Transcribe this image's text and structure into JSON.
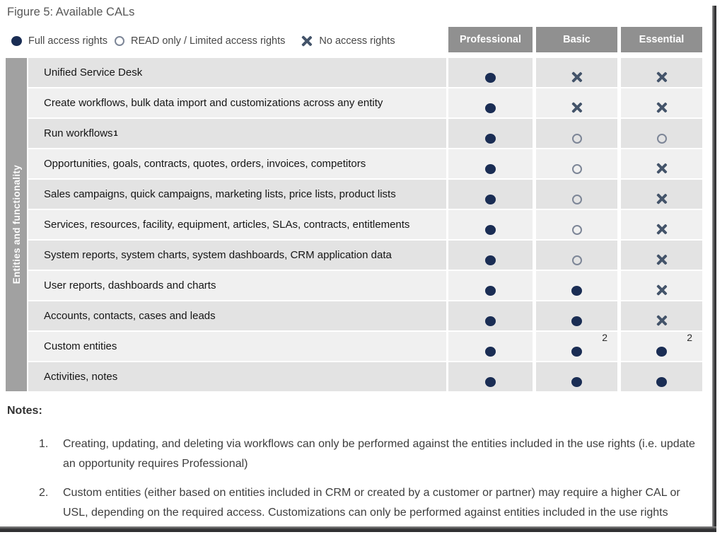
{
  "figure": {
    "title": "Figure 5: Available CALs"
  },
  "legend": [
    {
      "type": "full",
      "icon": "full-access-icon",
      "label": "Full access rights"
    },
    {
      "type": "limited",
      "icon": "limited-access-icon",
      "label": "READ only / Limited access rights"
    },
    {
      "type": "none",
      "icon": "no-access-icon",
      "label": "No access rights"
    }
  ],
  "table": {
    "group_label": "Entities and functionality",
    "columns": [
      "Professional",
      "Basic",
      "Essential"
    ],
    "cell_icons": {
      "full": "full-access-icon",
      "limited": "limited-access-icon",
      "none": "no-access-icon"
    },
    "rows": [
      {
        "label": "Unified Service Desk",
        "cells": [
          "full",
          "none",
          "none"
        ]
      },
      {
        "label": "Create workflows, bulk data import and customizations across any entity",
        "cells": [
          "full",
          "none",
          "none"
        ]
      },
      {
        "label": "Run workflows",
        "label_sup": "1",
        "cells": [
          "full",
          "limited",
          "limited"
        ]
      },
      {
        "label": "Opportunities, goals, contracts, quotes, orders, invoices, competitors",
        "cells": [
          "full",
          "limited",
          "none"
        ]
      },
      {
        "label": "Sales campaigns, quick campaigns, marketing lists, price lists, product lists",
        "cells": [
          "full",
          "limited",
          "none"
        ]
      },
      {
        "label": "Services, resources, facility, equipment, articles, SLAs, contracts, entitlements",
        "cells": [
          "full",
          "limited",
          "none"
        ]
      },
      {
        "label": "System reports, system charts, system dashboards, CRM application data",
        "cells": [
          "full",
          "limited",
          "none"
        ]
      },
      {
        "label": "User reports, dashboards and charts",
        "cells": [
          "full",
          "full",
          "none"
        ]
      },
      {
        "label": "Accounts, contacts, cases and leads",
        "cells": [
          "full",
          "full",
          "none"
        ]
      },
      {
        "label": "Custom entities",
        "cells": [
          "full",
          "full",
          "full"
        ],
        "cell_sups": [
          "",
          "2",
          "2"
        ]
      },
      {
        "label": "Activities, notes",
        "cells": [
          "full",
          "full",
          "full"
        ]
      }
    ]
  },
  "notes": {
    "heading": "Notes:",
    "items": [
      {
        "number": "1.",
        "text": "Creating, updating, and deleting via workflows can only be performed against the entities included in the use rights (i.e. update an opportunity requires Professional)"
      },
      {
        "number": "2.",
        "text": "Custom entities (either based on entities included in CRM or created by a customer or partner) may require a higher CAL or USL, depending on the required access. Customizations can only be performed against entities included in the use rights"
      }
    ]
  },
  "colors": {
    "full_access_dot": "#1a2d54",
    "no_access_x": "#44546a",
    "limited_ring": "#7d8697",
    "header_bg": "#909090",
    "sidebar_bg": "#a1a1a1",
    "row_dark": "#e3e3e3",
    "row_light": "#f0f0f0"
  }
}
